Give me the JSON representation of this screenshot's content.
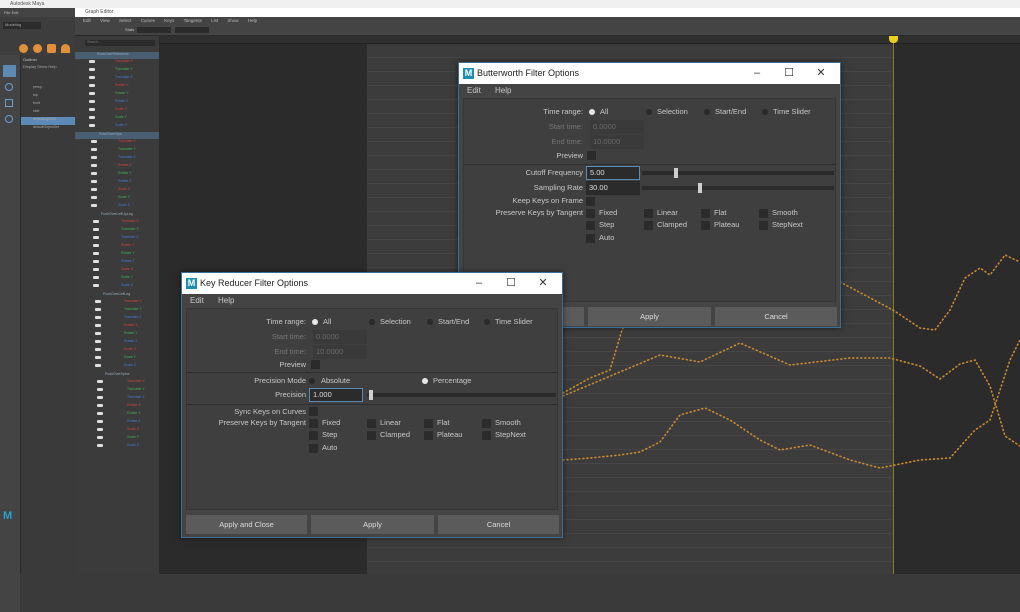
{
  "maya": {
    "title": "Autodesk Maya",
    "menu": [
      "File",
      "Edit",
      "Create",
      "Select"
    ],
    "workspace": "Modeling"
  },
  "graph_editor": {
    "title": "Graph Editor",
    "menu": [
      "Edit",
      "View",
      "Select",
      "Curves",
      "Keys",
      "Tangents",
      "List",
      "Show",
      "Help"
    ],
    "stats_label": "Stats",
    "search_placeholder": "Search...",
    "channels": [
      "Translate X",
      "Translate Y",
      "Translate Z",
      "Rotate X",
      "Rotate Y",
      "Rotate Z",
      "Scale X",
      "Scale Y",
      "Scale Z"
    ],
    "nodes": [
      "PushOverReference",
      "PushOverHips",
      "PushOverLeftUpLeg",
      "PushOverLeftLeg",
      "PushOverSpine"
    ]
  },
  "outliner": {
    "title": "Outliner",
    "menu": [
      "Display",
      "Show",
      "Help"
    ],
    "items": [
      "persp",
      "top",
      "front",
      "side",
      "defaultLightSet",
      "defaultObjectSet"
    ]
  },
  "colors": {
    "accent": "#3a6e9a",
    "curve": "#c88a30",
    "time_marker": "#e8d020",
    "channel_x": "#d04040",
    "channel_y": "#3fae5a",
    "channel_z": "#4a78d0"
  },
  "butterworth": {
    "title": "Butterworth Filter Options",
    "menu": [
      "Edit",
      "Help"
    ],
    "time_range_label": "Time range:",
    "time_range_options": [
      "All",
      "Selection",
      "Start/End",
      "Time Slider"
    ],
    "time_range_selected": "All",
    "start_time_label": "Start time:",
    "start_time": "0.0000",
    "end_time_label": "End time:",
    "end_time": "10.0000",
    "preview_label": "Preview",
    "cutoff_label": "Cutoff Frequency",
    "cutoff_value": "5.00",
    "cutoff_slider_level": 0.17,
    "sampling_label": "Sampling Rate",
    "sampling_value": "30.00",
    "sampling_slider_level": 0.3,
    "keep_keys_label": "Keep Keys on Frame",
    "preserve_label": "Preserve Keys by Tangent",
    "tangents": [
      "Fixed",
      "Linear",
      "Flat",
      "Smooth",
      "Step",
      "Clamped",
      "Plateau",
      "StepNext",
      "Auto"
    ],
    "buttons": {
      "apply_close": "Apply and Close",
      "apply": "Apply",
      "cancel": "Cancel"
    }
  },
  "key_reducer": {
    "title": "Key Reducer Filter Options",
    "menu": [
      "Edit",
      "Help"
    ],
    "time_range_label": "Time range:",
    "time_range_options": [
      "All",
      "Selection",
      "Start/End",
      "Time Slider"
    ],
    "time_range_selected": "All",
    "start_time_label": "Start time:",
    "start_time": "0.0000",
    "end_time_label": "End time:",
    "end_time": "10.0000",
    "preview_label": "Preview",
    "precision_mode_label": "Precision Mode",
    "precision_modes": [
      "Absolute",
      "Percentage"
    ],
    "precision_mode_selected": "Percentage",
    "precision_label": "Precision",
    "precision_value": "1.000",
    "precision_slider_level": 0.01,
    "sync_label": "Sync Keys on Curves",
    "preserve_label": "Preserve Keys by Tangent",
    "tangents": [
      "Fixed",
      "Linear",
      "Flat",
      "Smooth",
      "Step",
      "Clamped",
      "Plateau",
      "StepNext",
      "Auto"
    ],
    "buttons": {
      "apply_close": "Apply and Close",
      "apply": "Apply",
      "cancel": "Cancel"
    }
  }
}
